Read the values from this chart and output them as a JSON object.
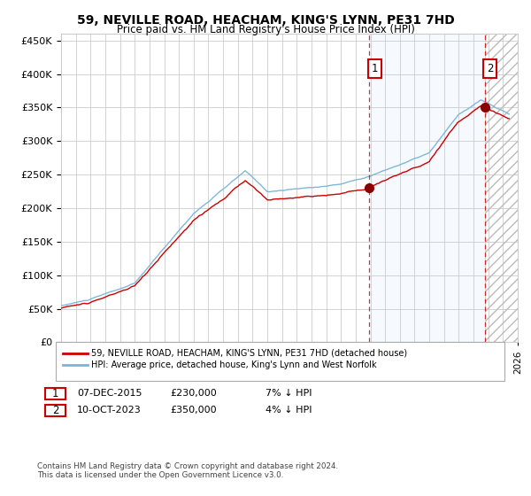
{
  "title": "59, NEVILLE ROAD, HEACHAM, KING'S LYNN, PE31 7HD",
  "subtitle": "Price paid vs. HM Land Registry's House Price Index (HPI)",
  "legend_line1": "59, NEVILLE ROAD, HEACHAM, KING'S LYNN, PE31 7HD (detached house)",
  "legend_line2": "HPI: Average price, detached house, King's Lynn and West Norfolk",
  "annotation1_date": "07-DEC-2015",
  "annotation1_price": "£230,000",
  "annotation1_hpi": "7% ↓ HPI",
  "annotation2_date": "10-OCT-2023",
  "annotation2_price": "£350,000",
  "annotation2_hpi": "4% ↓ HPI",
  "footnote1": "Contains HM Land Registry data © Crown copyright and database right 2024.",
  "footnote2": "This data is licensed under the Open Government Licence v3.0.",
  "sale1_year": 2015.92,
  "sale1_price": 230000,
  "sale2_year": 2023.78,
  "sale2_price": 350000,
  "hpi_color": "#7ab4d8",
  "price_color": "#cc0000",
  "shade_color": "#ddeeff",
  "ylim": [
    0,
    460000
  ],
  "yticks": [
    0,
    50000,
    100000,
    150000,
    200000,
    250000,
    300000,
    350000,
    400000,
    450000
  ],
  "xstart": 1995,
  "xend": 2026
}
